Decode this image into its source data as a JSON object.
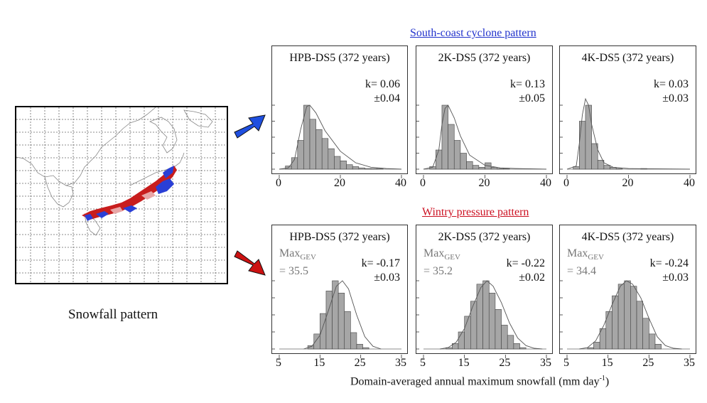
{
  "map": {
    "caption": "Snowfall pattern"
  },
  "sections": {
    "top_title": "South-coast cyclone pattern",
    "bottom_title": "Wintry pressure pattern"
  },
  "x_axis_title": "Domain-averaged annual maximum snowfall (mm day",
  "x_axis_unit_sup": "-1",
  "x_axis_unit_close": ")",
  "colors": {
    "bar_fill": "#a6a6a6",
    "bar_edge": "#444444",
    "top_arrow": "#1f4fe0",
    "bottom_arrow": "#cc1111",
    "top_title": "#2233cc",
    "bottom_title": "#cc1122",
    "map_red": "#c81d1d",
    "map_blue": "#2a3fd6"
  },
  "chart_data": [
    {
      "type": "bar",
      "panel": "top-1",
      "title": "HPB-DS5 (372 years)",
      "k_text": "k= 0.06",
      "k_err": "±0.04",
      "xlim": [
        0,
        40
      ],
      "xticks": [
        "0",
        "20",
        "40"
      ],
      "bin_width": 2,
      "bin_start": 2,
      "values": [
        5,
        18,
        45,
        100,
        78,
        62,
        48,
        32,
        20,
        13,
        7,
        4,
        2,
        1,
        1,
        1
      ],
      "fit": [
        [
          0,
          0
        ],
        [
          3,
          2
        ],
        [
          5,
          15
        ],
        [
          7,
          62
        ],
        [
          9,
          98
        ],
        [
          10,
          100
        ],
        [
          12,
          88
        ],
        [
          15,
          60
        ],
        [
          20,
          28
        ],
        [
          25,
          10
        ],
        [
          30,
          3
        ],
        [
          35,
          1
        ],
        [
          40,
          0
        ]
      ]
    },
    {
      "type": "bar",
      "panel": "top-2",
      "title": "2K-DS5 (372 years)",
      "k_text": "k= 0.13",
      "k_err": "±0.05",
      "xlim": [
        0,
        40
      ],
      "xticks": [
        "0",
        "20",
        "40"
      ],
      "bin_width": 2,
      "bin_start": 2,
      "values": [
        4,
        30,
        100,
        70,
        45,
        25,
        12,
        6,
        3,
        10,
        3,
        1,
        1
      ],
      "fit": [
        [
          0,
          0
        ],
        [
          3,
          3
        ],
        [
          5,
          30
        ],
        [
          6,
          70
        ],
        [
          7,
          95
        ],
        [
          8,
          100
        ],
        [
          10,
          80
        ],
        [
          12,
          52
        ],
        [
          15,
          22
        ],
        [
          20,
          6
        ],
        [
          25,
          2
        ],
        [
          30,
          1
        ],
        [
          40,
          0
        ]
      ]
    },
    {
      "type": "bar",
      "panel": "top-3",
      "title": "4K-DS5 (372 years)",
      "k_text": "k= 0.03",
      "k_err": "±0.03",
      "xlim": [
        0,
        40
      ],
      "xticks": [
        "0",
        "20",
        "40"
      ],
      "bin_width": 2,
      "bin_start": 2,
      "values": [
        4,
        75,
        100,
        40,
        14,
        6,
        3,
        1,
        0,
        0,
        0,
        1
      ],
      "fit": [
        [
          0,
          0
        ],
        [
          3,
          5
        ],
        [
          4,
          40
        ],
        [
          5,
          85
        ],
        [
          6,
          110
        ],
        [
          7,
          100
        ],
        [
          8,
          70
        ],
        [
          10,
          30
        ],
        [
          12,
          10
        ],
        [
          15,
          3
        ],
        [
          20,
          1
        ],
        [
          40,
          0
        ]
      ]
    },
    {
      "type": "bar",
      "panel": "bottom-1",
      "title": "HPB-DS5 (372 years)",
      "k_text": "k= -0.17",
      "k_err": "±0.03",
      "maxgev_label": "Max",
      "maxgev_sub": "GEV",
      "maxgev_value": "= 35.5",
      "xlim": [
        5,
        35
      ],
      "xticks": [
        "5",
        "15",
        "25",
        "35"
      ],
      "bin_width": 1.5,
      "bin_start": 12,
      "values": [
        5,
        22,
        52,
        85,
        100,
        82,
        55,
        24,
        7,
        2
      ],
      "fit": [
        [
          11,
          0
        ],
        [
          13,
          4
        ],
        [
          15,
          20
        ],
        [
          17,
          55
        ],
        [
          19,
          92
        ],
        [
          20.5,
          100
        ],
        [
          22,
          88
        ],
        [
          24,
          50
        ],
        [
          26,
          18
        ],
        [
          28,
          4
        ],
        [
          30,
          0
        ]
      ]
    },
    {
      "type": "bar",
      "panel": "bottom-2",
      "title": "2K-DS5 (372 years)",
      "k_text": "k= -0.22",
      "k_err": "±0.02",
      "maxgev_label": "Max",
      "maxgev_sub": "GEV",
      "maxgev_value": "= 35.2",
      "xlim": [
        5,
        35
      ],
      "xticks": [
        "5",
        "15",
        "25",
        "35"
      ],
      "bin_width": 1.5,
      "bin_start": 10.5,
      "values": [
        2,
        8,
        25,
        48,
        70,
        95,
        100,
        82,
        58,
        35,
        20,
        8,
        2
      ],
      "fit": [
        [
          9,
          0
        ],
        [
          11,
          2
        ],
        [
          13,
          10
        ],
        [
          15,
          30
        ],
        [
          17,
          62
        ],
        [
          19,
          90
        ],
        [
          20.5,
          100
        ],
        [
          22,
          92
        ],
        [
          24,
          68
        ],
        [
          26,
          38
        ],
        [
          28,
          16
        ],
        [
          30,
          5
        ],
        [
          32,
          1
        ],
        [
          34,
          0
        ]
      ]
    },
    {
      "type": "bar",
      "panel": "bottom-3",
      "title": "4K-DS5 (372 years)",
      "k_text": "k= -0.24",
      "k_err": "±0.03",
      "maxgev_label": "Max",
      "maxgev_sub": "GEV",
      "maxgev_value": "= 34.4",
      "xlim": [
        5,
        35
      ],
      "xticks": [
        "5",
        "15",
        "25",
        "35"
      ],
      "bin_width": 1.5,
      "bin_start": 10,
      "values": [
        2,
        10,
        30,
        55,
        78,
        95,
        100,
        92,
        70,
        45,
        22,
        7
      ],
      "fit": [
        [
          8,
          0
        ],
        [
          10,
          2
        ],
        [
          12,
          12
        ],
        [
          14,
          35
        ],
        [
          16,
          65
        ],
        [
          18,
          92
        ],
        [
          19.5,
          100
        ],
        [
          21,
          95
        ],
        [
          23,
          75
        ],
        [
          25,
          45
        ],
        [
          27,
          18
        ],
        [
          29,
          5
        ],
        [
          31,
          1
        ],
        [
          33,
          0
        ]
      ]
    }
  ]
}
